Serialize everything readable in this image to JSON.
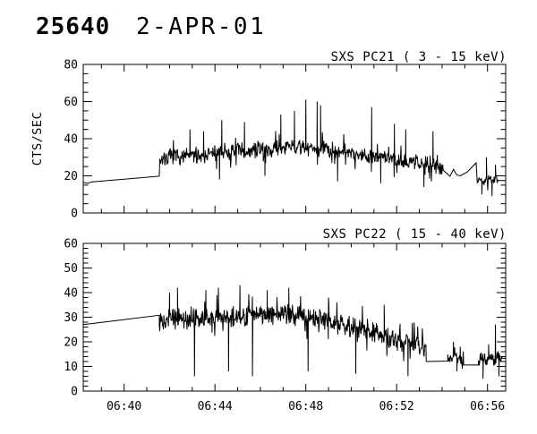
{
  "header": {
    "sequence": "25640",
    "date": "2-APR-01"
  },
  "colors": {
    "background": "#ffffff",
    "foreground": "#000000"
  },
  "chart_data": [
    {
      "type": "line",
      "title": "SXS PC21  (  3 - 15 keV)",
      "ylabel": "CTS/SEC",
      "ylim": [
        0,
        80
      ],
      "yticks": [
        0,
        20,
        40,
        60,
        80
      ],
      "yminor_step": 5,
      "xlim": [
        398.2,
        416.8
      ],
      "xticks": [
        {
          "t": 400,
          "label": "06:40"
        },
        {
          "t": 404,
          "label": "06:44"
        },
        {
          "t": 408,
          "label": "06:48"
        },
        {
          "t": 412,
          "label": "06:52"
        },
        {
          "t": 416,
          "label": "06:56"
        }
      ],
      "xminor_step": 1,
      "show_xtick_labels": false,
      "grid": false,
      "legend": "none",
      "segments": [
        {
          "kind": "line",
          "points": [
            [
              398.2,
              16.5
            ],
            [
              398.4,
              15.9
            ],
            [
              398.55,
              16.7
            ],
            [
              401.55,
              19.8
            ]
          ]
        },
        {
          "kind": "noise",
          "t0": 401.55,
          "t1": 414.05,
          "amp": 4.5,
          "mean": [
            [
              401.55,
              29.5
            ],
            [
              403,
              31
            ],
            [
              404.5,
              32.5
            ],
            [
              406,
              34
            ],
            [
              407.5,
              35.5
            ],
            [
              409,
              34.5
            ],
            [
              410.5,
              31.5
            ],
            [
              412,
              29
            ],
            [
              413,
              27
            ],
            [
              414.05,
              24.5
            ]
          ],
          "spikes": [
            [
              402.9,
              45
            ],
            [
              403.5,
              44
            ],
            [
              404.2,
              18
            ],
            [
              404.3,
              50
            ],
            [
              405.3,
              49
            ],
            [
              406.2,
              20
            ],
            [
              406.9,
              53
            ],
            [
              407.5,
              55
            ],
            [
              408.0,
              61
            ],
            [
              408.5,
              60
            ],
            [
              408.65,
              58
            ],
            [
              409.4,
              17
            ],
            [
              410.9,
              57
            ],
            [
              411.3,
              16
            ],
            [
              411.9,
              48
            ],
            [
              412.4,
              45
            ],
            [
              413.2,
              14
            ],
            [
              413.6,
              44
            ]
          ]
        },
        {
          "kind": "line",
          "points": [
            [
              414.05,
              23
            ],
            [
              414.35,
              19.8
            ],
            [
              414.5,
              23.5
            ],
            [
              414.65,
              20.5
            ],
            [
              414.8,
              20
            ],
            [
              415.1,
              22
            ],
            [
              415.3,
              24.5
            ],
            [
              415.5,
              27
            ]
          ]
        },
        {
          "kind": "noise",
          "t0": 415.55,
          "t1": 416.45,
          "amp": 3.2,
          "mean": [
            [
              415.55,
              18
            ],
            [
              416.45,
              17.5
            ]
          ],
          "spikes": [
            [
              415.75,
              10
            ],
            [
              415.95,
              30
            ],
            [
              416.2,
              9
            ],
            [
              416.35,
              26
            ]
          ]
        },
        {
          "kind": "line",
          "points": [
            [
              416.45,
              17.5
            ],
            [
              416.8,
              17.5
            ]
          ]
        }
      ]
    },
    {
      "type": "line",
      "title": "SXS PC22  ( 15 - 40 keV)",
      "ylabel": "",
      "ylim": [
        0,
        60
      ],
      "yticks": [
        0,
        10,
        20,
        30,
        40,
        50,
        60
      ],
      "yminor_step": 2,
      "xlim": [
        398.2,
        416.8
      ],
      "xticks": [
        {
          "t": 400,
          "label": "06:40"
        },
        {
          "t": 404,
          "label": "06:44"
        },
        {
          "t": 408,
          "label": "06:48"
        },
        {
          "t": 412,
          "label": "06:52"
        },
        {
          "t": 416,
          "label": "06:56"
        }
      ],
      "xminor_step": 1,
      "show_xtick_labels": true,
      "grid": false,
      "legend": "none",
      "segments": [
        {
          "kind": "line",
          "points": [
            [
              398.2,
              27
            ],
            [
              401.55,
              30.8
            ]
          ]
        },
        {
          "kind": "noise",
          "t0": 401.55,
          "t1": 413.3,
          "amp": 4.3,
          "mean": [
            [
              401.55,
              29.5
            ],
            [
              403,
              29
            ],
            [
              404.5,
              30
            ],
            [
              406,
              31
            ],
            [
              407,
              31.5
            ],
            [
              408,
              30.5
            ],
            [
              409.5,
              27.5
            ],
            [
              411,
              24
            ],
            [
              412,
              21
            ],
            [
              413.3,
              17.5
            ]
          ],
          "spikes": [
            [
              402.0,
              40
            ],
            [
              402.35,
              42
            ],
            [
              403.1,
              6
            ],
            [
              403.6,
              41
            ],
            [
              404.15,
              42
            ],
            [
              404.6,
              8
            ],
            [
              405.1,
              43
            ],
            [
              405.65,
              6
            ],
            [
              406.3,
              41
            ],
            [
              407.25,
              42
            ],
            [
              408.1,
              8
            ],
            [
              409.0,
              38
            ],
            [
              410.2,
              7
            ],
            [
              411.45,
              35
            ],
            [
              412.5,
              6
            ]
          ]
        },
        {
          "kind": "line",
          "points": [
            [
              413.3,
              12
            ],
            [
              414.25,
              12.2
            ]
          ]
        },
        {
          "kind": "noise",
          "t0": 414.25,
          "t1": 414.95,
          "amp": 2.2,
          "mean": [
            [
              414.25,
              13.5
            ],
            [
              414.95,
              13
            ]
          ],
          "spikes": [
            [
              414.5,
              20
            ],
            [
              414.65,
              8
            ],
            [
              414.8,
              18
            ]
          ]
        },
        {
          "kind": "line",
          "points": [
            [
              414.95,
              10.6
            ],
            [
              415.6,
              10.6
            ]
          ]
        },
        {
          "kind": "noise",
          "t0": 415.6,
          "t1": 416.65,
          "amp": 3.0,
          "mean": [
            [
              415.6,
              13
            ],
            [
              416.65,
              13
            ]
          ],
          "spikes": [
            [
              415.8,
              5
            ],
            [
              416.05,
              19
            ],
            [
              416.35,
              27
            ],
            [
              416.5,
              6
            ]
          ]
        },
        {
          "kind": "line",
          "points": [
            [
              416.65,
              13.3
            ],
            [
              416.8,
              13.3
            ]
          ]
        }
      ]
    }
  ]
}
